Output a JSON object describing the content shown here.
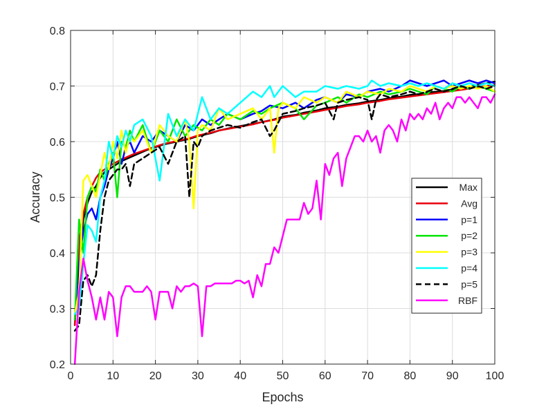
{
  "chart_data": {
    "type": "line",
    "title": "",
    "xlabel": "Epochs",
    "ylabel": "Accuracy",
    "xlim": [
      0,
      100
    ],
    "ylim": [
      0.2,
      0.8
    ],
    "xticks": [
      0,
      10,
      20,
      30,
      40,
      50,
      60,
      70,
      80,
      90,
      100
    ],
    "yticks": [
      0.2,
      0.3,
      0.4,
      0.5,
      0.6,
      0.7,
      0.8
    ],
    "xtick_labels": [
      "0",
      "10",
      "20",
      "30",
      "40",
      "50",
      "60",
      "70",
      "80",
      "90",
      "100"
    ],
    "ytick_labels": [
      "0.2",
      "0.3",
      "0.4",
      "0.5",
      "0.6",
      "0.7",
      "0.8"
    ],
    "grid": true,
    "legend_position": "right",
    "series": [
      {
        "name": "Max",
        "color": "#000000",
        "dash": "solid",
        "x": [
          1,
          2,
          3,
          4,
          5,
          6,
          7,
          8,
          10,
          12,
          15,
          18,
          20,
          22,
          25,
          28,
          30,
          33,
          35,
          38,
          40,
          43,
          45,
          48,
          50,
          53,
          55,
          58,
          60,
          63,
          65,
          68,
          70,
          73,
          75,
          78,
          80,
          83,
          85,
          88,
          90,
          93,
          95,
          98,
          100
        ],
        "y": [
          0.27,
          0.4,
          0.46,
          0.49,
          0.51,
          0.52,
          0.535,
          0.545,
          0.555,
          0.565,
          0.575,
          0.585,
          0.59,
          0.595,
          0.6,
          0.605,
          0.61,
          0.615,
          0.62,
          0.625,
          0.628,
          0.632,
          0.635,
          0.64,
          0.645,
          0.648,
          0.652,
          0.656,
          0.66,
          0.663,
          0.666,
          0.669,
          0.672,
          0.675,
          0.678,
          0.681,
          0.684,
          0.686,
          0.689,
          0.691,
          0.694,
          0.697,
          0.7,
          0.705,
          0.708
        ]
      },
      {
        "name": "Avg",
        "color": "#e8000b",
        "dash": "solid",
        "x": [
          1,
          2,
          3,
          4,
          5,
          6,
          7,
          8,
          10,
          12,
          15,
          18,
          20,
          22,
          25,
          28,
          30,
          33,
          35,
          38,
          40,
          43,
          45,
          48,
          50,
          53,
          55,
          58,
          60,
          63,
          65,
          68,
          70,
          73,
          75,
          78,
          80,
          83,
          85,
          88,
          90,
          93,
          95,
          98,
          100
        ],
        "y": [
          0.27,
          0.42,
          0.47,
          0.5,
          0.52,
          0.535,
          0.545,
          0.55,
          0.56,
          0.568,
          0.578,
          0.586,
          0.591,
          0.596,
          0.601,
          0.606,
          0.611,
          0.616,
          0.62,
          0.624,
          0.627,
          0.631,
          0.635,
          0.639,
          0.643,
          0.647,
          0.65,
          0.654,
          0.657,
          0.661,
          0.664,
          0.667,
          0.67,
          0.673,
          0.676,
          0.679,
          0.681,
          0.684,
          0.686,
          0.689,
          0.691,
          0.694,
          0.697,
          0.7,
          0.702
        ]
      },
      {
        "name": "p=1",
        "color": "#0000ff",
        "dash": "solid",
        "x": [
          1,
          2,
          3,
          4,
          5,
          6,
          7,
          8,
          9,
          10,
          11,
          12,
          13,
          14,
          15,
          17,
          19,
          21,
          23,
          25,
          27,
          29,
          31,
          33,
          35,
          37,
          40,
          43,
          45,
          47,
          50,
          53,
          55,
          58,
          60,
          63,
          65,
          68,
          70,
          73,
          75,
          78,
          80,
          82,
          84,
          86,
          88,
          90,
          92,
          94,
          96,
          98,
          100
        ],
        "y": [
          0.28,
          0.38,
          0.44,
          0.47,
          0.48,
          0.46,
          0.5,
          0.52,
          0.55,
          0.57,
          0.6,
          0.56,
          0.59,
          0.6,
          0.58,
          0.61,
          0.6,
          0.62,
          0.61,
          0.6,
          0.63,
          0.62,
          0.64,
          0.63,
          0.64,
          0.65,
          0.64,
          0.65,
          0.655,
          0.665,
          0.66,
          0.67,
          0.66,
          0.675,
          0.68,
          0.67,
          0.685,
          0.68,
          0.69,
          0.695,
          0.69,
          0.7,
          0.71,
          0.705,
          0.7,
          0.705,
          0.71,
          0.7,
          0.705,
          0.71,
          0.705,
          0.71,
          0.705
        ]
      },
      {
        "name": "p=2",
        "color": "#00e600",
        "dash": "solid",
        "x": [
          1,
          2,
          3,
          4,
          5,
          6,
          7,
          8,
          9,
          10,
          11,
          12,
          13,
          14,
          15,
          17,
          19,
          21,
          23,
          25,
          27,
          29,
          31,
          33,
          35,
          37,
          40,
          43,
          45,
          47,
          50,
          53,
          55,
          58,
          60,
          63,
          65,
          68,
          70,
          73,
          75,
          78,
          80,
          82,
          84,
          86,
          88,
          90,
          92,
          94,
          96,
          98,
          100
        ],
        "y": [
          0.28,
          0.46,
          0.4,
          0.5,
          0.52,
          0.51,
          0.55,
          0.53,
          0.56,
          0.58,
          0.5,
          0.6,
          0.59,
          0.62,
          0.6,
          0.63,
          0.58,
          0.62,
          0.6,
          0.64,
          0.61,
          0.63,
          0.62,
          0.64,
          0.63,
          0.65,
          0.64,
          0.655,
          0.65,
          0.66,
          0.67,
          0.66,
          0.64,
          0.665,
          0.67,
          0.68,
          0.67,
          0.685,
          0.68,
          0.69,
          0.685,
          0.69,
          0.695,
          0.69,
          0.685,
          0.7,
          0.695,
          0.69,
          0.7,
          0.695,
          0.7,
          0.695,
          0.69
        ]
      },
      {
        "name": "p=3",
        "color": "#ffff00",
        "dash": "solid",
        "x": [
          1,
          2,
          3,
          4,
          5,
          6,
          7,
          8,
          9,
          10,
          11,
          12,
          13,
          14,
          15,
          17,
          19,
          21,
          23,
          25,
          27,
          28,
          29,
          30,
          31,
          33,
          35,
          37,
          40,
          43,
          45,
          47,
          48,
          49,
          50,
          53,
          55,
          58,
          60,
          63,
          65,
          68,
          70,
          73,
          75,
          78,
          80,
          82,
          84,
          86,
          88,
          90,
          92,
          94,
          96,
          98,
          100
        ],
        "y": [
          0.29,
          0.33,
          0.53,
          0.54,
          0.52,
          0.5,
          0.54,
          0.58,
          0.55,
          0.6,
          0.57,
          0.62,
          0.58,
          0.61,
          0.6,
          0.62,
          0.58,
          0.63,
          0.61,
          0.6,
          0.64,
          0.6,
          0.48,
          0.62,
          0.63,
          0.62,
          0.66,
          0.64,
          0.65,
          0.66,
          0.64,
          0.66,
          0.58,
          0.66,
          0.67,
          0.66,
          0.68,
          0.67,
          0.68,
          0.67,
          0.69,
          0.68,
          0.69,
          0.685,
          0.695,
          0.69,
          0.7,
          0.695,
          0.69,
          0.7,
          0.695,
          0.7,
          0.695,
          0.7,
          0.695,
          0.7,
          0.69
        ]
      },
      {
        "name": "p=4",
        "color": "#00ffff",
        "dash": "solid",
        "x": [
          1,
          2,
          3,
          4,
          5,
          6,
          7,
          8,
          9,
          10,
          11,
          12,
          13,
          14,
          15,
          17,
          19,
          21,
          23,
          25,
          27,
          29,
          31,
          33,
          35,
          37,
          40,
          43,
          45,
          47,
          48,
          50,
          53,
          55,
          58,
          60,
          63,
          65,
          68,
          70,
          71,
          73,
          75,
          78,
          80,
          82,
          84,
          86,
          88,
          90,
          92,
          94,
          96,
          98,
          100
        ],
        "y": [
          0.29,
          0.3,
          0.38,
          0.45,
          0.44,
          0.42,
          0.5,
          0.53,
          0.6,
          0.57,
          0.61,
          0.59,
          0.62,
          0.6,
          0.63,
          0.64,
          0.61,
          0.53,
          0.65,
          0.61,
          0.64,
          0.62,
          0.68,
          0.64,
          0.66,
          0.65,
          0.67,
          0.69,
          0.68,
          0.7,
          0.68,
          0.7,
          0.68,
          0.69,
          0.69,
          0.7,
          0.695,
          0.7,
          0.695,
          0.7,
          0.71,
          0.7,
          0.705,
          0.7,
          0.705,
          0.7,
          0.705,
          0.7,
          0.695,
          0.705,
          0.7,
          0.705,
          0.7,
          0.705,
          0.7
        ]
      },
      {
        "name": "p=5",
        "color": "#000000",
        "dash": "dashed",
        "x": [
          1,
          2,
          3,
          4,
          5,
          6,
          7,
          8,
          9,
          10,
          11,
          12,
          13,
          14,
          15,
          17,
          19,
          21,
          23,
          25,
          27,
          28,
          29,
          30,
          31,
          33,
          35,
          37,
          40,
          43,
          45,
          47,
          48,
          50,
          53,
          55,
          58,
          60,
          62,
          63,
          65,
          68,
          70,
          71,
          72,
          73,
          75,
          78,
          80,
          82,
          84,
          86,
          88,
          90,
          92,
          94,
          96,
          98,
          100
        ],
        "y": [
          0.26,
          0.27,
          0.35,
          0.36,
          0.34,
          0.36,
          0.44,
          0.5,
          0.53,
          0.54,
          0.55,
          0.55,
          0.56,
          0.52,
          0.56,
          0.57,
          0.58,
          0.59,
          0.56,
          0.6,
          0.61,
          0.5,
          0.6,
          0.59,
          0.61,
          0.62,
          0.625,
          0.63,
          0.625,
          0.635,
          0.64,
          0.61,
          0.62,
          0.65,
          0.655,
          0.66,
          0.665,
          0.67,
          0.64,
          0.67,
          0.675,
          0.68,
          0.675,
          0.64,
          0.675,
          0.685,
          0.68,
          0.685,
          0.69,
          0.685,
          0.69,
          0.695,
          0.69,
          0.695,
          0.7,
          0.695,
          0.7,
          0.695,
          0.7
        ]
      },
      {
        "name": "RBF",
        "color": "#ff00ff",
        "dash": "solid",
        "x": [
          1,
          2,
          3,
          4,
          5,
          6,
          7,
          8,
          9,
          10,
          11,
          12,
          13,
          14,
          15,
          16,
          17,
          18,
          19,
          20,
          21,
          22,
          23,
          24,
          25,
          26,
          27,
          28,
          29,
          30,
          31,
          32,
          33,
          34,
          35,
          36,
          37,
          38,
          39,
          40,
          41,
          42,
          43,
          44,
          45,
          46,
          47,
          48,
          49,
          50,
          51,
          52,
          53,
          54,
          55,
          56,
          57,
          58,
          59,
          60,
          61,
          62,
          63,
          64,
          65,
          66,
          67,
          68,
          69,
          70,
          71,
          72,
          73,
          74,
          75,
          76,
          77,
          78,
          79,
          80,
          81,
          82,
          83,
          84,
          85,
          86,
          87,
          88,
          89,
          90,
          91,
          92,
          93,
          94,
          95,
          96,
          97,
          98,
          99,
          100
        ],
        "y": [
          0.2,
          0.33,
          0.39,
          0.35,
          0.32,
          0.28,
          0.32,
          0.28,
          0.33,
          0.32,
          0.25,
          0.32,
          0.34,
          0.34,
          0.33,
          0.33,
          0.33,
          0.34,
          0.33,
          0.28,
          0.33,
          0.33,
          0.33,
          0.3,
          0.34,
          0.33,
          0.34,
          0.34,
          0.345,
          0.34,
          0.25,
          0.34,
          0.34,
          0.345,
          0.345,
          0.345,
          0.345,
          0.345,
          0.35,
          0.35,
          0.345,
          0.35,
          0.32,
          0.36,
          0.34,
          0.38,
          0.38,
          0.41,
          0.4,
          0.43,
          0.46,
          0.46,
          0.46,
          0.46,
          0.49,
          0.47,
          0.48,
          0.53,
          0.46,
          0.56,
          0.54,
          0.57,
          0.58,
          0.52,
          0.57,
          0.59,
          0.61,
          0.61,
          0.6,
          0.62,
          0.6,
          0.61,
          0.58,
          0.62,
          0.63,
          0.62,
          0.6,
          0.64,
          0.62,
          0.65,
          0.64,
          0.65,
          0.64,
          0.66,
          0.65,
          0.67,
          0.64,
          0.66,
          0.67,
          0.66,
          0.68,
          0.68,
          0.67,
          0.68,
          0.67,
          0.66,
          0.68,
          0.68,
          0.67,
          0.685
        ]
      }
    ]
  }
}
